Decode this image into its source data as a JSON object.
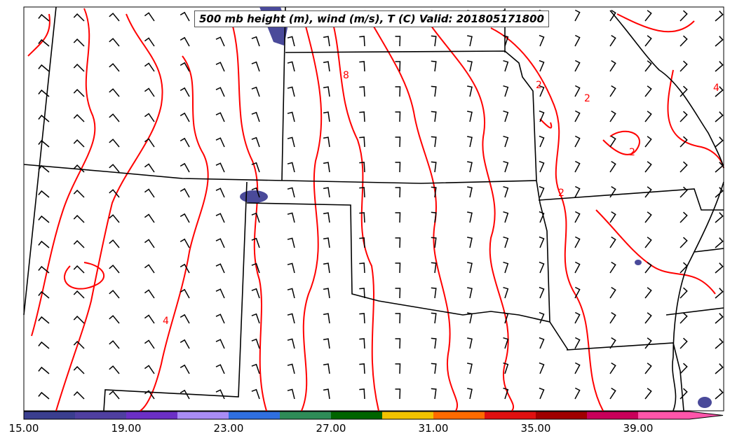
{
  "title": "500 mb height (m), wind (m/s), T (C) Valid: 201805171800",
  "colorbar": {
    "tick_labels": [
      "15.00",
      "19.00",
      "23.00",
      "27.00",
      "31.00",
      "35.00",
      "39.00"
    ],
    "colors": [
      "#3a3e8f",
      "#4f3fa0",
      "#6b2fc5",
      "#a98cf5",
      "#2f6fe0",
      "#2e8b57",
      "#006400",
      "#f2c200",
      "#ff6a00",
      "#e01010",
      "#a00000",
      "#c8005a",
      "#ff55aa"
    ]
  },
  "contour_labels": [
    "8",
    "2",
    "2",
    "2",
    "2",
    "4",
    "4"
  ],
  "colors": {
    "contour": "#ff0000",
    "shade": "#4a4a9a",
    "border": "#000000",
    "barb": "#000000"
  }
}
